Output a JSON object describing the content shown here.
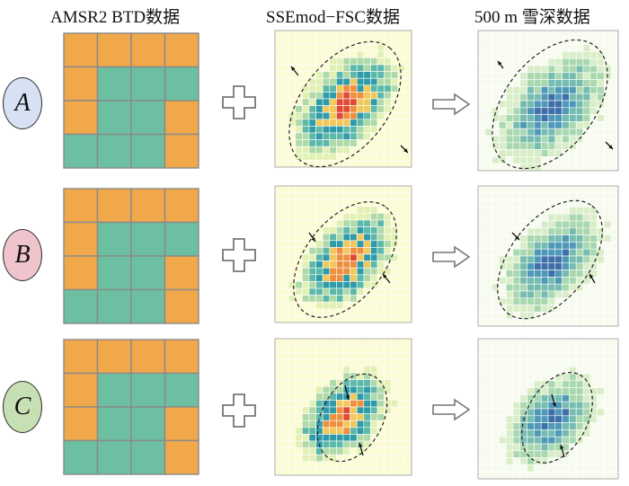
{
  "headers": {
    "col1": "AMSR2 BTD数据",
    "col2": "SSEmod−FSC数据",
    "col3": "500 m 雪深数据"
  },
  "rows": [
    {
      "label": "A",
      "oval_color": "#d6e2f3",
      "btd_pattern": [
        [
          0,
          0,
          0,
          0
        ],
        [
          0,
          1,
          1,
          1
        ],
        [
          0,
          1,
          1,
          0
        ],
        [
          1,
          1,
          1,
          0
        ]
      ]
    },
    {
      "label": "B",
      "oval_color": "#f0c4cc",
      "btd_pattern": [
        [
          0,
          0,
          0,
          0
        ],
        [
          0,
          1,
          1,
          1
        ],
        [
          0,
          1,
          1,
          0
        ],
        [
          1,
          1,
          1,
          0
        ]
      ]
    },
    {
      "label": "C",
      "oval_color": "#c7e0b3",
      "btd_pattern": [
        [
          0,
          0,
          0,
          0
        ],
        [
          0,
          1,
          1,
          1
        ],
        [
          0,
          1,
          1,
          0
        ],
        [
          1,
          1,
          1,
          0
        ]
      ]
    }
  ],
  "colors": {
    "orange": "#f0a84a",
    "teal": "#6cbfa0",
    "grid_line": "#8a8a8a",
    "fsc_ramp": [
      "#fbfbd4",
      "#e2f0b4",
      "#aed9a8",
      "#5cb8a8",
      "#2f9ba8",
      "#f2c85a",
      "#ee8f3c",
      "#e04a34"
    ],
    "snow_ramp": [
      "#f7fbef",
      "#d9eec8",
      "#a9d8b0",
      "#76bcb0",
      "#4e98b8",
      "#3e6fa8"
    ]
  }
}
